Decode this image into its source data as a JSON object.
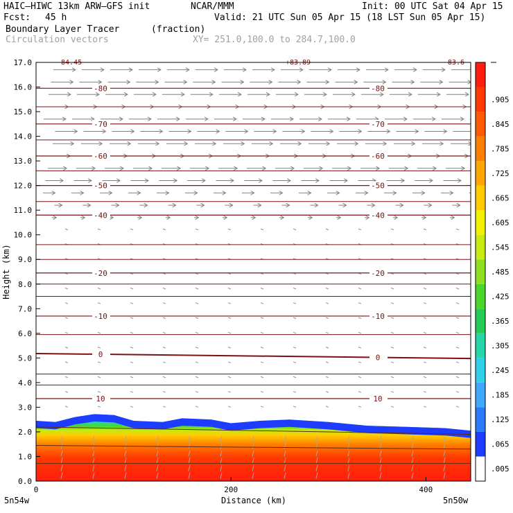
{
  "header": {
    "model_line": "HAIC–HIWC 13km ARW–GFS init",
    "org": "NCAR/MMM",
    "init": "Init: 00 UTC Sat 04 Apr 15",
    "fcst_label": "Fcst:",
    "fcst_value": "45 h",
    "valid": "Valid: 21 UTC Sun 05 Apr 15 (18 LST Sun 05 Apr 15)",
    "field": "Boundary Layer Tracer",
    "field_units": "(fraction)",
    "vectors": "Circulation vectors",
    "xy": "XY= 251.0,100.0 to 284.7,100.0"
  },
  "chart_data": {
    "type": "heatmap",
    "title": "Boundary Layer Tracer",
    "units": "(fraction)",
    "xlabel": "Distance (km)",
    "ylabel": "Height (km)",
    "xlim": [
      0,
      446
    ],
    "ylim": [
      0,
      17
    ],
    "x_ticks": [
      0,
      200,
      400
    ],
    "y_ticks": [
      0.0,
      1.0,
      2.0,
      3.0,
      4.0,
      5.0,
      6.0,
      7.0,
      8.0,
      9.0,
      10.0,
      11.0,
      12.0,
      13.0,
      14.0,
      15.0,
      16.0,
      17.0
    ],
    "y_tick_labels": [
      "0.0",
      "1.0",
      "2.0",
      "3.0",
      "4.0",
      "5.0",
      "6.0",
      "7.0",
      "8.0",
      "9.0",
      "10.0",
      "11.0",
      "12.0",
      "13.0",
      "14.0",
      "15.0",
      "16.0",
      "17.0"
    ],
    "x_end_labels": [
      "5n54w",
      "5n50w"
    ],
    "colorbar": {
      "labels": [
        ".005",
        ".065",
        ".125",
        ".185",
        ".245",
        ".305",
        ".365",
        ".425",
        ".485",
        ".545",
        ".605",
        ".665",
        ".725",
        ".785",
        ".845",
        ".905"
      ],
      "colors": [
        "#ffffff",
        "#1e3cff",
        "#2b7bff",
        "#3fa8ff",
        "#2fd0e8",
        "#25d6a8",
        "#22cc55",
        "#4cd62a",
        "#8ee01e",
        "#c6ea12",
        "#f2f000",
        "#ffcc00",
        "#ffa600",
        "#ff7f00",
        "#ff5a00",
        "#ff3a00",
        "#ff1e0e"
      ]
    },
    "tracer_top_km": [
      [
        0,
        2.45
      ],
      [
        20,
        2.4
      ],
      [
        40,
        2.6
      ],
      [
        60,
        2.72
      ],
      [
        80,
        2.68
      ],
      [
        100,
        2.45
      ],
      [
        130,
        2.4
      ],
      [
        150,
        2.55
      ],
      [
        180,
        2.5
      ],
      [
        200,
        2.35
      ],
      [
        230,
        2.45
      ],
      [
        260,
        2.5
      ],
      [
        300,
        2.4
      ],
      [
        340,
        2.25
      ],
      [
        380,
        2.2
      ],
      [
        420,
        2.15
      ],
      [
        446,
        2.05
      ]
    ],
    "temperature_contours_c": [
      {
        "value": 10,
        "label": "10",
        "height_km": 3.35,
        "slope": 0
      },
      {
        "value": 0,
        "label": "0",
        "height_km": 5.18,
        "slope": -0.02
      },
      {
        "value": -10,
        "label": "-10",
        "height_km": 6.7,
        "slope": 0
      },
      {
        "value": -20,
        "label": "-20",
        "height_km": 8.45,
        "slope": 0
      },
      {
        "value": -40,
        "label": "-40",
        "height_km": 10.8,
        "slope": 0
      },
      {
        "value": -50,
        "label": "-50",
        "height_km": 12.0,
        "slope": 0
      },
      {
        "value": -60,
        "label": "-60",
        "height_km": 13.2,
        "slope": 0
      },
      {
        "value": -70,
        "label": "-70",
        "height_km": 14.5,
        "slope": 0
      },
      {
        "value": -80,
        "label": "-80",
        "height_km": 15.95,
        "slope": 0
      }
    ],
    "top_annotations": [
      "-84.45",
      "+83.89",
      "-83.6"
    ],
    "vector_rows_km": [
      {
        "height_km": 16.7,
        "strength": 1.0
      },
      {
        "height_km": 16.2,
        "strength": 1.0
      },
      {
        "height_km": 15.7,
        "strength": 1.0
      },
      {
        "height_km": 15.2,
        "strength": 1.0
      },
      {
        "height_km": 14.7,
        "strength": 1.0
      },
      {
        "height_km": 14.2,
        "strength": 1.0
      },
      {
        "height_km": 13.7,
        "strength": 0.95
      },
      {
        "height_km": 13.2,
        "strength": 0.9
      },
      {
        "height_km": 12.7,
        "strength": 0.85
      },
      {
        "height_km": 12.2,
        "strength": 0.8
      },
      {
        "height_km": 11.7,
        "strength": 0.55
      },
      {
        "height_km": 11.2,
        "strength": 0.35
      },
      {
        "height_km": 10.7,
        "strength": 0.2
      }
    ]
  }
}
